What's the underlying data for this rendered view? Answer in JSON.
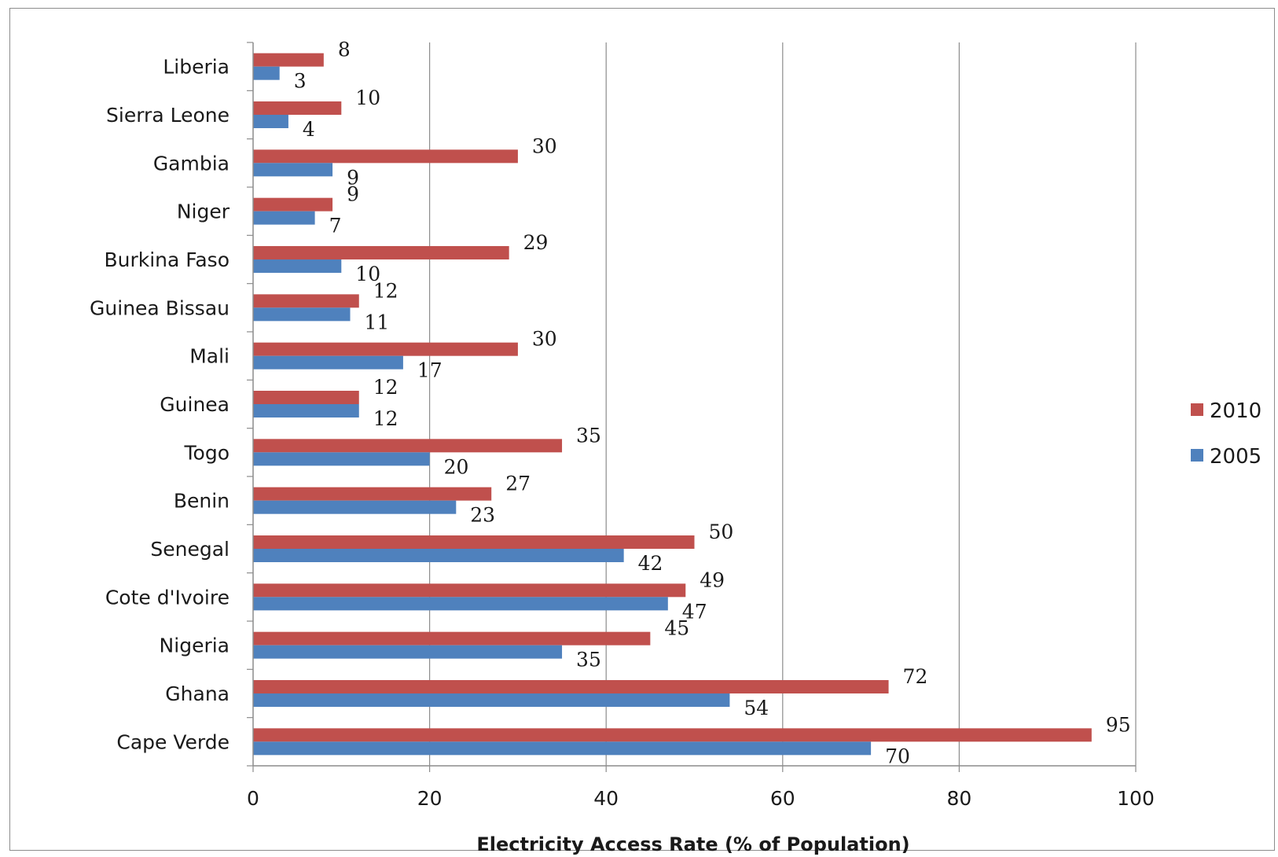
{
  "chart_data": {
    "type": "bar",
    "orientation": "horizontal",
    "categories": [
      "Liberia",
      "Sierra Leone",
      "Gambia",
      "Niger",
      "Burkina Faso",
      "Guinea Bissau",
      "Mali",
      "Guinea",
      "Togo",
      "Benin",
      "Senegal",
      "Cote d'Ivoire",
      "Nigeria",
      "Ghana",
      "Cape Verde"
    ],
    "series": [
      {
        "name": "2010",
        "color": "#c0504d",
        "values": [
          8,
          10,
          30,
          9,
          29,
          12,
          30,
          12,
          35,
          27,
          50,
          49,
          45,
          72,
          95
        ]
      },
      {
        "name": "2005",
        "color": "#4f81bd",
        "values": [
          3,
          4,
          9,
          7,
          10,
          11,
          17,
          12,
          20,
          23,
          42,
          47,
          35,
          54,
          70
        ]
      }
    ],
    "xlabel": "Electricity Access Rate (% of Population)",
    "ylabel": "",
    "xlim": [
      0,
      100
    ],
    "xticks": [
      0,
      20,
      40,
      60,
      80,
      100
    ],
    "grid": "vertical",
    "legend_position": "right"
  }
}
